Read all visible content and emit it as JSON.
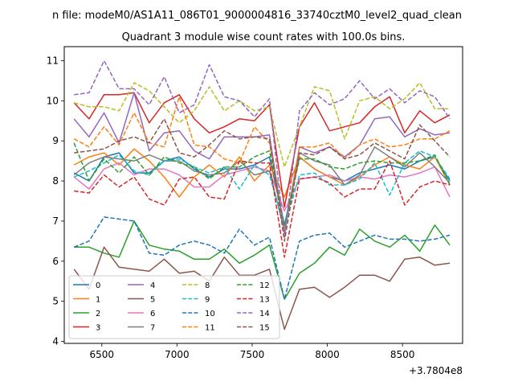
{
  "chart_data": {
    "type": "line",
    "suptitle": "n file: modeM0/AS1A11_086T01_9000004816_33740cztM0_level2_quad_clean",
    "title": "Quadrant 3 module wise count rates with 100.0s bins.",
    "xlabel": "",
    "ylabel": "",
    "x_offset_label": "+3.7804e8",
    "xlim": [
      6250,
      8900
    ],
    "ylim": [
      3.95,
      11.35
    ],
    "x_ticks": [
      6500,
      7000,
      7500,
      8000,
      8500
    ],
    "x_tick_labels": [
      "6500",
      "7000",
      "7500",
      "8000",
      "8500"
    ],
    "y_ticks": [
      4,
      5,
      6,
      7,
      8,
      9,
      10,
      11
    ],
    "y_tick_labels": [
      "4",
      "5",
      "6",
      "7",
      "8",
      "9",
      "10",
      "11"
    ],
    "grid": false,
    "legend": {
      "placement": "lower-left",
      "columns": 4
    },
    "x": [
      6315,
      6415,
      6515,
      6615,
      6715,
      6815,
      6915,
      7015,
      7115,
      7215,
      7315,
      7415,
      7515,
      7615,
      7715,
      7815,
      7915,
      8015,
      8115,
      8215,
      8315,
      8415,
      8515,
      8615,
      8715,
      8815
    ],
    "series": [
      {
        "name": "0",
        "color": "#1f77b4",
        "dash": "solid",
        "values": [
          8.2,
          8.0,
          8.6,
          8.7,
          8.2,
          8.2,
          8.5,
          8.6,
          8.3,
          8.1,
          8.3,
          8.3,
          8.4,
          8.6,
          6.9,
          8.6,
          8.3,
          8.1,
          8.0,
          8.2,
          8.3,
          8.4,
          8.3,
          8.5,
          8.6,
          8.0
        ]
      },
      {
        "name": "1",
        "color": "#ff7f0e",
        "dash": "solid",
        "values": [
          8.4,
          8.6,
          8.7,
          8.4,
          8.8,
          8.5,
          8.1,
          7.6,
          8.1,
          8.4,
          8.1,
          8.6,
          8.0,
          8.4,
          7.6,
          8.6,
          8.3,
          8.1,
          7.9,
          8.1,
          8.4,
          8.6,
          8.4,
          8.3,
          8.6,
          7.9
        ]
      },
      {
        "name": "2",
        "color": "#2ca02c",
        "dash": "solid",
        "values": [
          6.35,
          6.35,
          6.2,
          6.1,
          7.0,
          6.4,
          6.3,
          6.25,
          6.05,
          6.05,
          6.3,
          5.95,
          6.15,
          6.4,
          5.05,
          5.7,
          5.95,
          6.35,
          6.15,
          6.8,
          6.5,
          6.35,
          6.65,
          6.25,
          6.9,
          6.4
        ]
      },
      {
        "name": "3",
        "color": "#d62728",
        "dash": "solid",
        "values": [
          9.95,
          9.55,
          10.15,
          10.15,
          10.2,
          9.45,
          9.95,
          10.15,
          9.55,
          9.2,
          9.35,
          9.55,
          9.5,
          9.9,
          7.35,
          9.35,
          9.95,
          9.25,
          9.35,
          9.45,
          9.85,
          10.1,
          9.2,
          9.75,
          9.45,
          9.65
        ]
      },
      {
        "name": "4",
        "color": "#9467bd",
        "dash": "solid",
        "values": [
          9.55,
          9.1,
          9.7,
          8.95,
          10.2,
          8.75,
          9.2,
          9.25,
          8.75,
          8.55,
          9.1,
          9.1,
          9.1,
          9.15,
          6.7,
          8.85,
          8.7,
          8.85,
          8.6,
          8.9,
          9.55,
          9.6,
          9.1,
          9.3,
          9.15,
          9.2
        ]
      },
      {
        "name": "5",
        "color": "#8c564b",
        "dash": "solid",
        "values": [
          5.8,
          5.3,
          6.35,
          5.85,
          5.8,
          5.75,
          6.05,
          5.7,
          5.75,
          5.5,
          6.1,
          5.65,
          5.65,
          5.8,
          4.3,
          5.3,
          5.35,
          5.1,
          5.35,
          5.65,
          5.65,
          5.5,
          6.05,
          6.1,
          5.9,
          5.95
        ]
      },
      {
        "name": "6",
        "color": "#e377c2",
        "dash": "solid",
        "values": [
          8.1,
          7.8,
          8.3,
          8.45,
          8.15,
          8.3,
          8.3,
          8.15,
          7.85,
          7.85,
          8.15,
          8.25,
          8.35,
          8.25,
          7.25,
          8.05,
          8.1,
          8.15,
          8.0,
          8.1,
          8.05,
          8.15,
          8.1,
          8.2,
          8.35,
          7.6
        ]
      },
      {
        "name": "7",
        "color": "#7f7f7f",
        "dash": "solid",
        "values": [
          8.15,
          8.45,
          8.6,
          8.55,
          8.5,
          8.65,
          8.5,
          8.5,
          8.25,
          8.15,
          8.2,
          8.5,
          8.15,
          8.25,
          6.75,
          8.7,
          8.5,
          8.4,
          7.9,
          8.15,
          8.85,
          8.6,
          8.35,
          8.7,
          8.35,
          7.95
        ]
      },
      {
        "name": "8",
        "color": "#bcbd22",
        "dash": "dashed",
        "values": [
          9.95,
          9.85,
          9.85,
          9.75,
          10.45,
          10.25,
          9.85,
          9.45,
          9.75,
          10.35,
          9.75,
          10.0,
          9.75,
          9.85,
          8.35,
          9.35,
          10.35,
          10.25,
          9.05,
          10.0,
          10.1,
          9.8,
          10.05,
          10.45,
          9.8,
          9.8
        ]
      },
      {
        "name": "9",
        "color": "#17becf",
        "dash": "dashed",
        "values": [
          8.1,
          8.25,
          8.45,
          8.65,
          8.25,
          8.15,
          8.5,
          8.55,
          8.35,
          8.2,
          8.35,
          7.8,
          8.4,
          8.15,
          6.85,
          8.15,
          8.2,
          7.9,
          7.9,
          8.05,
          8.45,
          7.65,
          8.45,
          8.75,
          8.6,
          8.05
        ]
      },
      {
        "name": "10",
        "color": "#1f77b4",
        "dash": "dashed",
        "values": [
          6.35,
          6.5,
          7.1,
          7.05,
          7.0,
          6.2,
          6.15,
          6.4,
          6.5,
          6.4,
          6.2,
          6.8,
          6.4,
          6.6,
          5.05,
          6.5,
          6.65,
          6.7,
          6.35,
          6.5,
          6.65,
          6.55,
          6.55,
          6.5,
          6.55,
          6.65
        ]
      },
      {
        "name": "11",
        "color": "#ff7f0e",
        "dash": "dashed",
        "values": [
          9.05,
          8.85,
          9.35,
          8.9,
          9.7,
          8.95,
          8.85,
          10.1,
          8.9,
          8.85,
          8.55,
          8.45,
          9.35,
          8.95,
          6.75,
          8.85,
          8.85,
          8.95,
          8.55,
          8.9,
          9.05,
          8.85,
          8.9,
          9.05,
          9.05,
          9.25
        ]
      },
      {
        "name": "12",
        "color": "#2ca02c",
        "dash": "dashed",
        "values": [
          8.95,
          8.0,
          8.55,
          8.2,
          8.6,
          8.15,
          8.6,
          8.45,
          8.35,
          8.05,
          8.35,
          8.35,
          8.6,
          8.75,
          6.9,
          8.55,
          8.55,
          8.35,
          8.3,
          8.45,
          8.5,
          8.45,
          8.45,
          8.5,
          8.65,
          7.9
        ]
      },
      {
        "name": "13",
        "color": "#d62728",
        "dash": "dashed",
        "values": [
          7.75,
          7.7,
          8.15,
          7.85,
          8.1,
          7.55,
          7.4,
          8.05,
          8.1,
          7.6,
          7.55,
          8.5,
          8.45,
          8.45,
          6.1,
          8.05,
          8.1,
          7.95,
          7.6,
          7.8,
          7.8,
          8.5,
          7.4,
          7.85,
          8.0,
          7.9
        ]
      },
      {
        "name": "14",
        "color": "#9467bd",
        "dash": "dashed",
        "values": [
          10.15,
          10.2,
          11.0,
          10.3,
          10.3,
          9.9,
          10.6,
          9.7,
          9.9,
          10.9,
          10.1,
          10.0,
          9.6,
          10.05,
          6.6,
          9.75,
          10.2,
          9.9,
          10.05,
          10.5,
          10.05,
          10.3,
          9.95,
          10.25,
          10.1,
          9.55
        ]
      },
      {
        "name": "15",
        "color": "#8c564b",
        "dash": "dashed",
        "values": [
          8.7,
          8.75,
          8.8,
          9.0,
          9.1,
          8.95,
          9.55,
          8.7,
          8.6,
          8.9,
          9.25,
          9.05,
          9.1,
          9.05,
          6.5,
          8.7,
          8.65,
          8.85,
          8.55,
          8.65,
          8.95,
          8.75,
          8.55,
          9.4,
          9.0,
          8.6
        ]
      }
    ]
  }
}
